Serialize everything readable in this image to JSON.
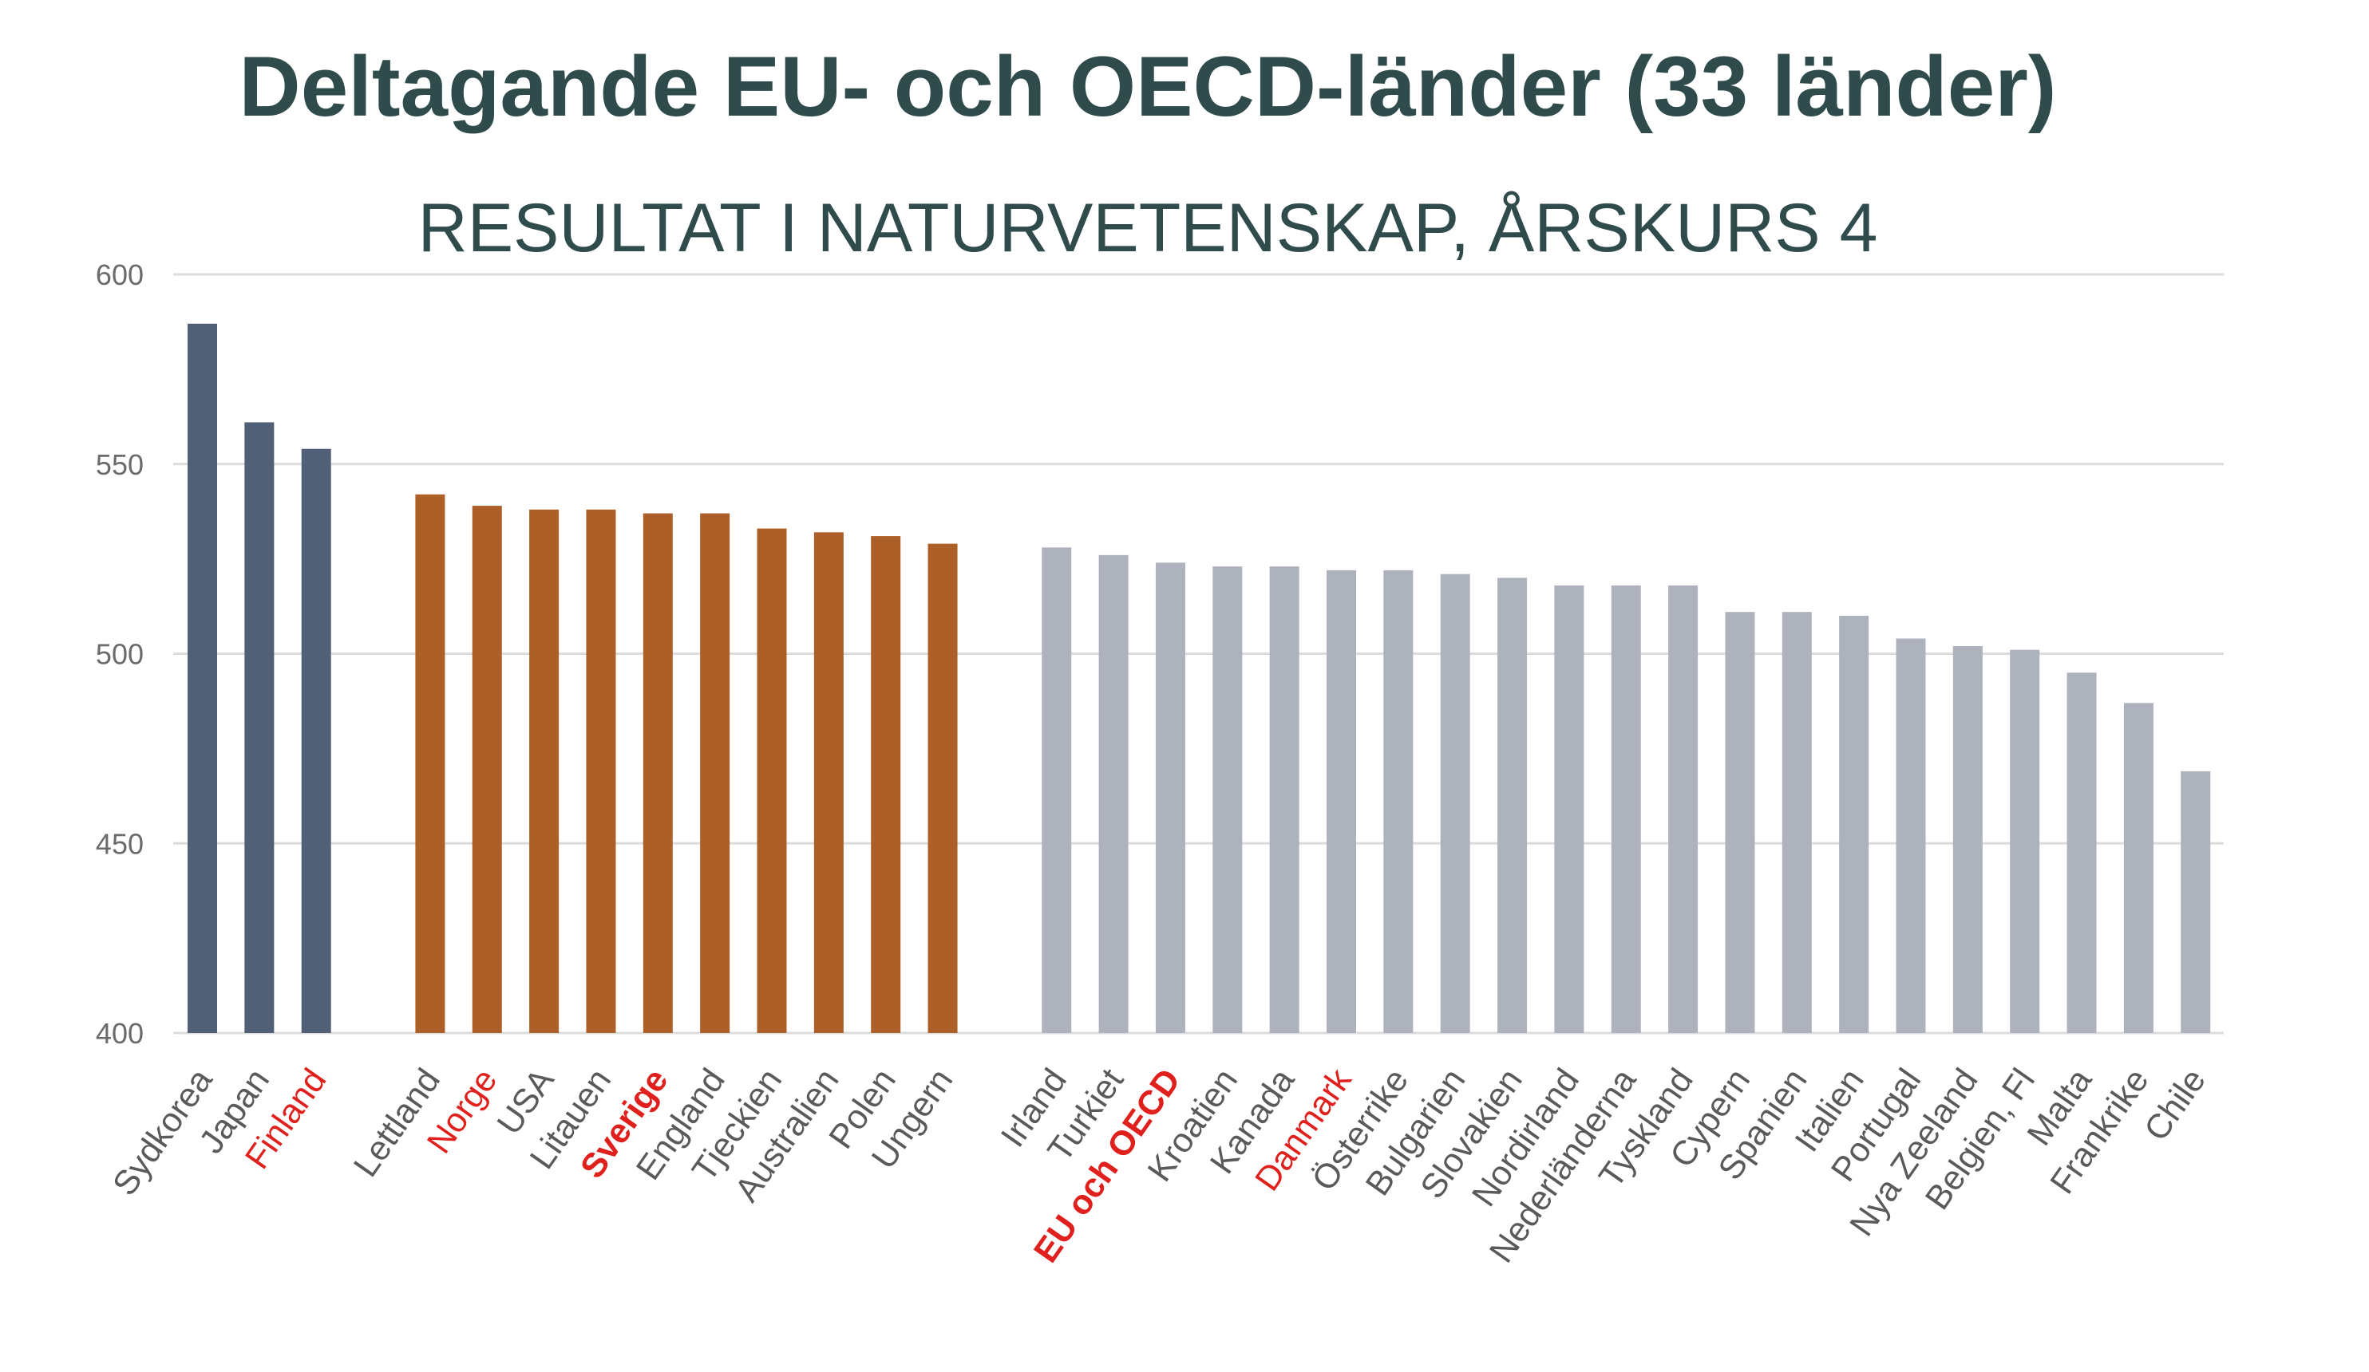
{
  "chart_data": {
    "type": "bar",
    "title": "Deltagande EU- och OECD-länder (33 länder)",
    "subtitle": "RESULTAT I NATURVETENSKAP, ÅRSKURS 4",
    "xlabel": "",
    "ylabel": "",
    "ylim": [
      400,
      600
    ],
    "yticks": [
      "400",
      "450",
      "500",
      "550",
      "600"
    ],
    "grid": true,
    "legend": "none",
    "colors": {
      "top": "#515f77",
      "middle": "#ac5f26",
      "rest": "#adb2bc",
      "label": "#5a5a5a",
      "highlight_label": "#e0201c",
      "title": "#2f4b4b"
    },
    "groups": [
      {
        "name": "top",
        "categories": [
          "Sydkorea",
          "Japan",
          "Finland"
        ],
        "values": [
          587,
          561,
          554
        ],
        "highlight": [
          false,
          false,
          true
        ],
        "bold": [
          false,
          false,
          false
        ]
      },
      {
        "name": "middle",
        "categories": [
          "Lettland",
          "Norge",
          "USA",
          "Litauen",
          "Sverige",
          "England",
          "Tjeckien",
          "Australien",
          "Polen",
          "Ungern"
        ],
        "values": [
          542,
          539,
          538,
          538,
          537,
          537,
          533,
          532,
          531,
          529
        ],
        "highlight": [
          false,
          true,
          false,
          false,
          true,
          false,
          false,
          false,
          false,
          false
        ],
        "bold": [
          false,
          false,
          false,
          false,
          true,
          false,
          false,
          false,
          false,
          false
        ]
      },
      {
        "name": "rest",
        "categories": [
          "Irland",
          "Turkiet",
          "EU och OECD",
          "Kroatien",
          "Kanada",
          "Danmark",
          "Österrike",
          "Bulgarien",
          "Slovakien",
          "Nordirland",
          "Nederländerna",
          "Tyskland",
          "Cypern",
          "Spanien",
          "Italien",
          "Portugal",
          "Nya Zeeland",
          "Belgien, Fl",
          "Malta",
          "Frankrike",
          "Chile"
        ],
        "values": [
          528,
          526,
          524,
          523,
          523,
          522,
          522,
          521,
          520,
          518,
          518,
          518,
          511,
          511,
          510,
          504,
          502,
          501,
          495,
          487,
          469
        ],
        "highlight": [
          false,
          false,
          true,
          false,
          false,
          true,
          false,
          false,
          false,
          false,
          false,
          false,
          false,
          false,
          false,
          false,
          false,
          false,
          false,
          false,
          false
        ],
        "bold": [
          false,
          false,
          true,
          false,
          false,
          false,
          false,
          false,
          false,
          false,
          false,
          false,
          false,
          false,
          false,
          false,
          false,
          false,
          false,
          false,
          false
        ]
      }
    ]
  }
}
